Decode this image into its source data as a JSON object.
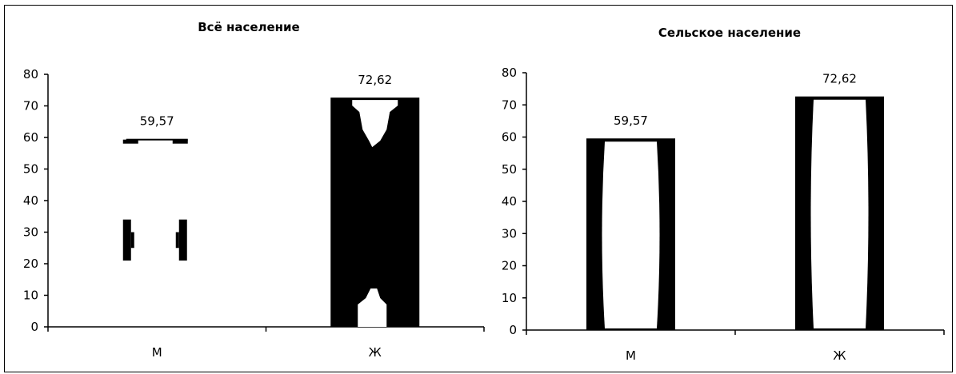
{
  "chart_data": [
    {
      "type": "bar",
      "title": "Всё население",
      "categories": [
        "М",
        "Ж"
      ],
      "values": [
        59.57,
        72.62
      ],
      "data_labels": [
        "59,57",
        "72,62"
      ],
      "ylim": [
        0,
        80
      ],
      "yticks": [
        "0",
        "10",
        "20",
        "30",
        "40",
        "50",
        "60",
        "70",
        "80"
      ],
      "grid": false,
      "legend": "none"
    },
    {
      "type": "bar",
      "title": "Сельское население",
      "categories": [
        "М",
        "Ж"
      ],
      "values": [
        59.57,
        72.62
      ],
      "data_labels": [
        "59,57",
        "72,62"
      ],
      "ylim": [
        0,
        80
      ],
      "yticks": [
        "0",
        "10",
        "20",
        "30",
        "40",
        "50",
        "60",
        "70",
        "80"
      ],
      "grid": false,
      "legend": "none"
    }
  ]
}
